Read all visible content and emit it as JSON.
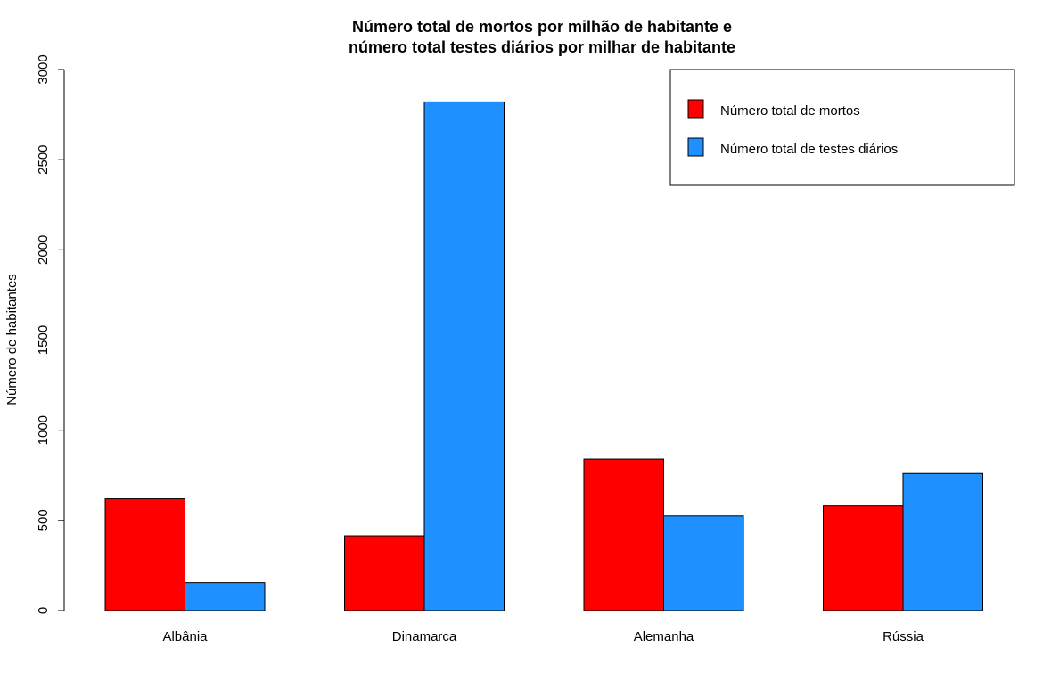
{
  "chart_data": {
    "type": "bar",
    "title_line1": "Número total de mortos por milhão de habitante e",
    "title_line2": "número total testes diários por milhar de habitante",
    "xlabel": "",
    "ylabel": "Número de habitantes",
    "ylim": [
      0,
      3000
    ],
    "yticks": [
      "0",
      "500",
      "1000",
      "1500",
      "2000",
      "2500",
      "3000"
    ],
    "categories": [
      "Albânia",
      "Dinamarca",
      "Alemanha",
      "Rússia"
    ],
    "series": [
      {
        "name": "Número total de mortos",
        "color": "#ff0000",
        "values": [
          620,
          415,
          840,
          580
        ]
      },
      {
        "name": "Número total de testes diários",
        "color": "#1e90ff",
        "values": [
          155,
          2820,
          525,
          760
        ]
      }
    ],
    "legend_position": "top-right",
    "grid": false
  }
}
